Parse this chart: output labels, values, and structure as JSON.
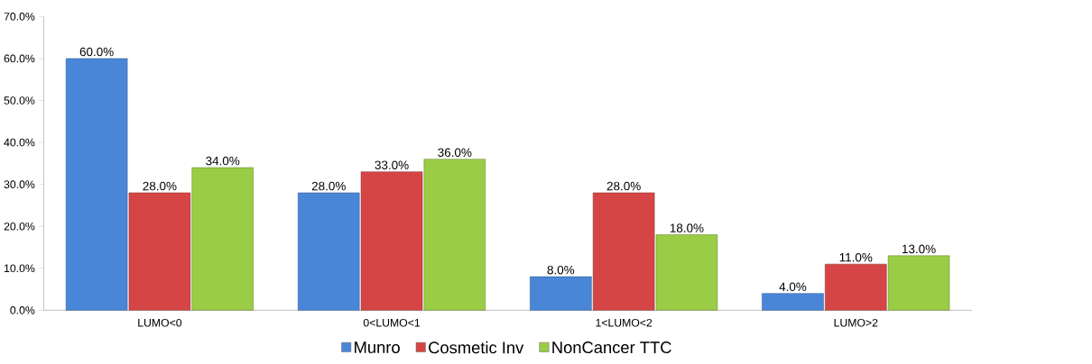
{
  "chart_data": {
    "type": "bar",
    "categories": [
      "LUMO<0",
      "0<LUMO<1",
      "1<LUMO<2",
      "LUMO>2"
    ],
    "series": [
      {
        "name": "Munro",
        "color": "#4a86d8",
        "values": [
          60.0,
          28.0,
          8.0,
          4.0
        ],
        "value_labels": [
          "60.0%",
          "28.0%",
          "8.0%",
          "4.0%"
        ]
      },
      {
        "name": "Cosmetic Inv",
        "color": "#d64545",
        "values": [
          28.0,
          33.0,
          28.0,
          11.0
        ],
        "value_labels": [
          "28.0%",
          "33.0%",
          "28.0%",
          "11.0%"
        ]
      },
      {
        "name": "NonCancer TTC",
        "color": "#9acd45",
        "values": [
          34.0,
          36.0,
          18.0,
          13.0
        ],
        "value_labels": [
          "34.0%",
          "36.0%",
          "18.0%",
          "13.0%"
        ]
      }
    ],
    "ylim": [
      0,
      70
    ],
    "yticks": [
      {
        "value": 0,
        "label": "0.0%"
      },
      {
        "value": 10,
        "label": "10.0%"
      },
      {
        "value": 20,
        "label": "20.0%"
      },
      {
        "value": 30,
        "label": "30.0%"
      },
      {
        "value": 40,
        "label": "40.0%"
      },
      {
        "value": 50,
        "label": "50.0%"
      },
      {
        "value": 60,
        "label": "60.0%"
      },
      {
        "value": 70,
        "label": "70.0%"
      }
    ],
    "grid": false,
    "legend": "bottom"
  }
}
